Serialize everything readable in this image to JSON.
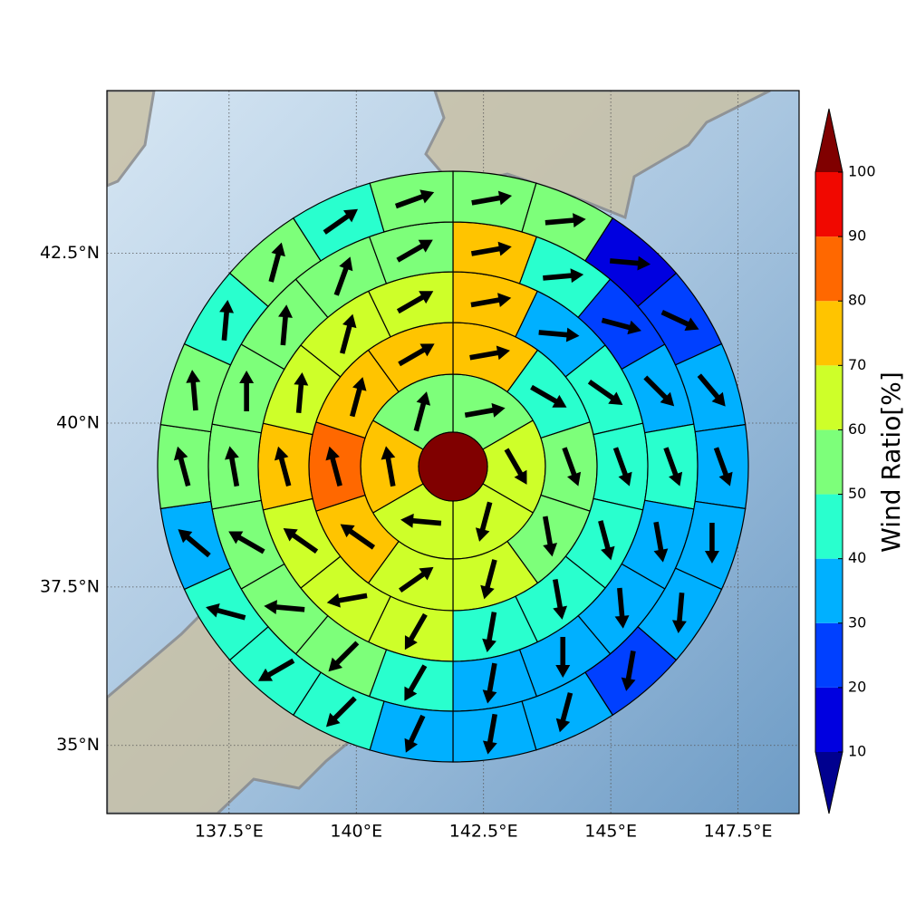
{
  "map": {
    "xlim": [
      135.1,
      148.7
    ],
    "ylim": [
      33.9,
      44.8
    ],
    "xticks": [
      {
        "value": 137.5,
        "label": "137.5°E"
      },
      {
        "value": 140,
        "label": "140°E"
      },
      {
        "value": 142.5,
        "label": "142.5°E"
      },
      {
        "value": 145,
        "label": "145°E"
      },
      {
        "value": 147.5,
        "label": "147.5°E"
      }
    ],
    "yticks": [
      {
        "value": 35,
        "label": "35°N"
      },
      {
        "value": 37.5,
        "label": "37.5°N"
      },
      {
        "value": 40,
        "label": "40°N"
      },
      {
        "value": 42.5,
        "label": "42.5°N"
      }
    ],
    "grid": true,
    "wind_rose": {
      "rings": [
        {
          "values": [
            55,
            65,
            65,
            65,
            75,
            55
          ],
          "directions": [
            80,
            150,
            195,
            275,
            350,
            15
          ]
        },
        {
          "values": [
            75,
            45,
            55,
            55,
            65,
            65,
            75,
            85,
            75,
            75
          ],
          "directions": [
            80,
            120,
            160,
            170,
            195,
            55,
            305,
            345,
            15,
            60
          ]
        },
        {
          "values": [
            75,
            35,
            45,
            45,
            45,
            45,
            45,
            65,
            65,
            65,
            75,
            65,
            65,
            65
          ],
          "directions": [
            80,
            95,
            125,
            160,
            165,
            170,
            190,
            210,
            260,
            305,
            345,
            5,
            15,
            60
          ]
        },
        {
          "values": [
            75,
            45,
            25,
            35,
            45,
            35,
            35,
            35,
            35,
            45,
            55,
            55,
            55,
            55,
            55,
            55,
            55,
            55
          ],
          "directions": [
            80,
            85,
            105,
            135,
            160,
            170,
            175,
            180,
            190,
            210,
            225,
            275,
            300,
            350,
            0,
            5,
            20,
            60
          ]
        },
        {
          "values": [
            55,
            55,
            15,
            25,
            35,
            35,
            35,
            35,
            25,
            35,
            35,
            35,
            45,
            45,
            45,
            35,
            55,
            55,
            45,
            55,
            45,
            55
          ],
          "directions": [
            80,
            85,
            95,
            115,
            140,
            160,
            180,
            185,
            190,
            195,
            190,
            205,
            225,
            240,
            285,
            310,
            345,
            355,
            5,
            15,
            55,
            70
          ]
        }
      ]
    },
    "colorbar": {
      "label": "Wind Ratio[%]",
      "levels": [
        10,
        20,
        30,
        40,
        50,
        60,
        70,
        80,
        90,
        100
      ],
      "colors": [
        "#0000e0",
        "#0040ff",
        "#00b0ff",
        "#29ffce",
        "#7dff7a",
        "#ceff29",
        "#ffc400",
        "#ff6800",
        "#f10800"
      ],
      "under_color": "#00008f",
      "over_color": "#800000"
    }
  }
}
